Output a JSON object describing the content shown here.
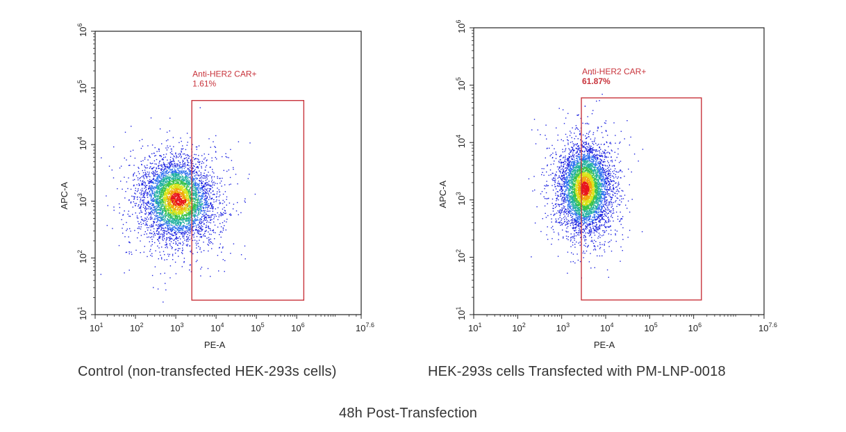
{
  "chart_data": [
    {
      "type": "scatter",
      "subtype": "flow-cytometry density plot",
      "xlabel": "PE-A",
      "ylabel": "APC-A",
      "x_scale": "log",
      "y_scale": "log",
      "xlim": [
        10,
        39810717
      ],
      "ylim": [
        10,
        1000000
      ],
      "x_ticks": [
        {
          "value": 10,
          "base": "10",
          "exp": "1"
        },
        {
          "value": 100,
          "base": "10",
          "exp": "2"
        },
        {
          "value": 1000,
          "base": "10",
          "exp": "3"
        },
        {
          "value": 10000,
          "base": "10",
          "exp": "4"
        },
        {
          "value": 100000,
          "base": "10",
          "exp": "5"
        },
        {
          "value": 1000000,
          "base": "10",
          "exp": "6"
        },
        {
          "value": 39810717,
          "base": "10",
          "exp": "7.6"
        }
      ],
      "y_ticks": [
        {
          "value": 10,
          "base": "10",
          "exp": "1"
        },
        {
          "value": 100,
          "base": "10",
          "exp": "2"
        },
        {
          "value": 1000,
          "base": "10",
          "exp": "3"
        },
        {
          "value": 10000,
          "base": "10",
          "exp": "4"
        },
        {
          "value": 100000,
          "base": "10",
          "exp": "5"
        },
        {
          "value": 1000000,
          "base": "10",
          "exp": "6"
        }
      ],
      "population": {
        "x_center": 1000,
        "y_center": 1100,
        "x_spread_log": 0.38,
        "y_spread_log": 0.32
      },
      "gate": {
        "label": "Anti-HER2 CAR+",
        "percent": "1.61%",
        "x_range": [
          2500,
          1500000
        ],
        "y_range": [
          18,
          60000
        ],
        "color": "#c8333b"
      },
      "grid": false
    },
    {
      "type": "scatter",
      "subtype": "flow-cytometry density plot",
      "xlabel": "PE-A",
      "ylabel": "APC-A",
      "x_scale": "log",
      "y_scale": "log",
      "xlim": [
        10,
        39810717
      ],
      "ylim": [
        10,
        1000000
      ],
      "x_ticks": [
        {
          "value": 10,
          "base": "10",
          "exp": "1"
        },
        {
          "value": 100,
          "base": "10",
          "exp": "2"
        },
        {
          "value": 1000,
          "base": "10",
          "exp": "3"
        },
        {
          "value": 10000,
          "base": "10",
          "exp": "4"
        },
        {
          "value": 100000,
          "base": "10",
          "exp": "5"
        },
        {
          "value": 1000000,
          "base": "10",
          "exp": "6"
        },
        {
          "value": 39810717,
          "base": "10",
          "exp": "7.6"
        }
      ],
      "y_ticks": [
        {
          "value": 10,
          "base": "10",
          "exp": "1"
        },
        {
          "value": 100,
          "base": "10",
          "exp": "2"
        },
        {
          "value": 1000,
          "base": "10",
          "exp": "3"
        },
        {
          "value": 10000,
          "base": "10",
          "exp": "4"
        },
        {
          "value": 100000,
          "base": "10",
          "exp": "5"
        },
        {
          "value": 1000000,
          "base": "10",
          "exp": "6"
        }
      ],
      "population": {
        "x_center": 3300,
        "y_center": 1600,
        "x_spread_log": 0.26,
        "y_spread_log": 0.34
      },
      "gate": {
        "label": "Anti-HER2 CAR+",
        "percent": "61.87%",
        "x_range": [
          2800,
          1500000
        ],
        "y_range": [
          18,
          60000
        ],
        "color": "#c8333b"
      },
      "grid": false
    }
  ],
  "captions": {
    "left": "Control (non-transfected HEK-293s cells)",
    "right": "HEK-293s cells Transfected with PM-LNP-0018",
    "bottom": "48h Post-Transfection"
  }
}
